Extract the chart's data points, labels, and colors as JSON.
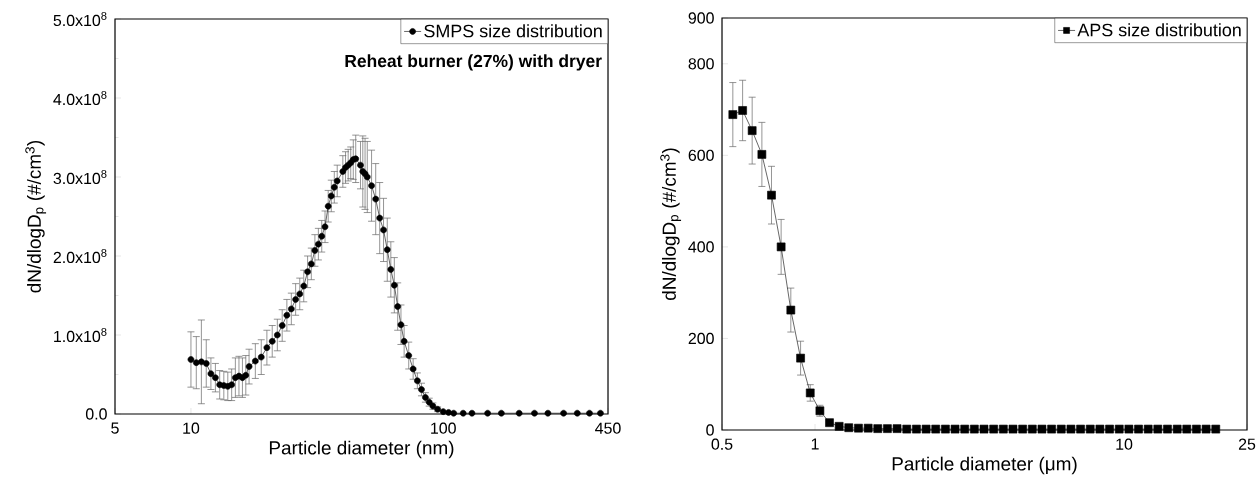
{
  "chart_data": [
    {
      "type": "line",
      "xlabel": "Particle diameter (nm)",
      "ylabel": "dN/dlogD$_{p}$ (#/cm$^{3}$)",
      "log": "x",
      "legend": "top right",
      "marker": "circle",
      "line_style": "solid",
      "annotations": [
        "Reheat burner (27%) with dryer"
      ],
      "xlim": [
        5,
        450
      ],
      "xticks": [
        5,
        10,
        100,
        450
      ],
      "ylim": [
        0,
        500000000.0
      ],
      "yticks": [
        {
          "value": 0,
          "label": "0.0"
        },
        {
          "value": 100000000.0,
          "label": "1.0x10$^{8}$"
        },
        {
          "value": 200000000.0,
          "label": "2.0x10$^{8}$"
        },
        {
          "value": 300000000.0,
          "label": "3.0x10$^{8}$"
        },
        {
          "value": 400000000.0,
          "label": "4.0x10$^{8}$"
        },
        {
          "value": 500000000.0,
          "label": "5.0x10$^{8}$"
        }
      ],
      "series": [
        {
          "name": "SMPS size distribution",
          "color": "#000000",
          "x": [
            10,
            10.5,
            11,
            11.5,
            12,
            12.5,
            13,
            13.5,
            14,
            14.5,
            15,
            15.5,
            16,
            16.5,
            17,
            18,
            19,
            20,
            21,
            22,
            23,
            24,
            25,
            26,
            27,
            28,
            29,
            30,
            31,
            32,
            33,
            34,
            35,
            36,
            37,
            38,
            40,
            41,
            42,
            43,
            44,
            45,
            47,
            48,
            49,
            50,
            52,
            54,
            56,
            58,
            60,
            62,
            64,
            66,
            68,
            70,
            73,
            76,
            79,
            82,
            85,
            88,
            91,
            95,
            100,
            105,
            110,
            120,
            130,
            150,
            170,
            200,
            230,
            260,
            300,
            340,
            380,
            420
          ],
          "values": [
            69000000.0,
            65000000.0,
            66000000.0,
            64000000.0,
            51000000.0,
            46000000.0,
            37000000.0,
            36000000.0,
            35000000.0,
            37000000.0,
            46000000.0,
            48000000.0,
            46000000.0,
            49000000.0,
            60000000.0,
            67000000.0,
            72000000.0,
            84000000.0,
            92000000.0,
            100000000.0,
            112000000.0,
            125000000.0,
            133000000.0,
            145000000.0,
            152000000.0,
            162000000.0,
            180000000.0,
            190000000.0,
            207000000.0,
            215000000.0,
            225000000.0,
            237000000.0,
            263000000.0,
            276000000.0,
            287000000.0,
            295000000.0,
            307000000.0,
            312000000.0,
            315000000.0,
            318000000.0,
            322000000.0,
            323000000.0,
            315000000.0,
            307000000.0,
            304000000.0,
            300000000.0,
            289000000.0,
            272000000.0,
            248000000.0,
            233000000.0,
            208000000.0,
            183000000.0,
            163000000.0,
            136000000.0,
            113000000.0,
            92000000.0,
            74000000.0,
            57000000.0,
            42000000.0,
            31000000.0,
            21000000.0,
            15000000.0,
            10000000.0,
            6000000.0,
            3000000.0,
            2000000.0,
            1000000.0,
            1000000.0,
            1000000.0,
            1000000.0,
            1000000.0,
            1000000.0,
            1000000.0,
            1000000.0,
            1000000.0,
            1000000.0,
            1000000.0,
            1000000.0
          ],
          "errors": [
            35000000.0,
            33000000.0,
            53000000.0,
            30000000.0,
            20000000.0,
            18000000.0,
            18000000.0,
            18000000.0,
            18000000.0,
            20000000.0,
            25000000.0,
            25000000.0,
            25000000.0,
            25000000.0,
            22000000.0,
            22000000.0,
            22000000.0,
            22000000.0,
            20000000.0,
            20000000.0,
            20000000.0,
            20000000.0,
            20000000.0,
            20000000.0,
            20000000.0,
            20000000.0,
            20000000.0,
            20000000.0,
            20000000.0,
            20000000.0,
            20000000.0,
            20000000.0,
            20000000.0,
            20000000.0,
            20000000.0,
            20000000.0,
            20000000.0,
            20000000.0,
            20000000.0,
            20000000.0,
            25000000.0,
            30000000.0,
            30000000.0,
            45000000.0,
            45000000.0,
            45000000.0,
            45000000.0,
            45000000.0,
            45000000.0,
            40000000.0,
            40000000.0,
            35000000.0,
            35000000.0,
            30000000.0,
            25000000.0,
            20000000.0,
            17000000.0,
            13000000.0,
            10000000.0,
            8000000.0,
            6000000.0,
            5000000.0,
            4000000.0,
            3000000.0,
            null,
            null,
            null,
            null,
            null,
            null,
            null,
            null,
            null,
            null,
            null,
            null,
            null,
            null
          ]
        }
      ]
    },
    {
      "type": "line",
      "xlabel": "Particle diameter (μm)",
      "ylabel": "dN/dlogD$_{p}$ (#/cm$^{3}$)",
      "log": "x",
      "legend": "top right",
      "marker": "square",
      "line_style": "solid",
      "xlim": [
        0.5,
        25
      ],
      "xticks": [
        0.5,
        1,
        10,
        25
      ],
      "ylim": [
        0,
        900
      ],
      "yticks": [
        0,
        200,
        400,
        600,
        800,
        900
      ],
      "series": [
        {
          "name": "APS size distribution",
          "color": "#000000",
          "x": [
            0.542,
            0.583,
            0.626,
            0.673,
            0.723,
            0.777,
            0.835,
            0.898,
            0.965,
            1.037,
            1.114,
            1.197,
            1.286,
            1.382,
            1.486,
            1.596,
            1.715,
            1.843,
            1.981,
            2.129,
            2.288,
            2.458,
            2.642,
            2.839,
            3.051,
            3.278,
            3.523,
            3.786,
            4.068,
            4.371,
            4.698,
            5.048,
            5.425,
            5.829,
            6.264,
            6.732,
            7.234,
            7.774,
            8.354,
            8.977,
            9.647,
            10.37,
            11.14,
            11.97,
            12.86,
            13.82,
            14.86,
            15.96,
            17.15,
            18.43,
            19.81
          ],
          "values": [
            689,
            698,
            654,
            602,
            513,
            400,
            262,
            157,
            81,
            42,
            16,
            8,
            5,
            4,
            4,
            3,
            3,
            3,
            2,
            2,
            2,
            2,
            2,
            2,
            2,
            2,
            2,
            2,
            2,
            2,
            2,
            2,
            2,
            2,
            2,
            2,
            2,
            2,
            2,
            2,
            2,
            2,
            2,
            2,
            2,
            2,
            2,
            2,
            2,
            2,
            2
          ],
          "errors": [
            70,
            66,
            73,
            70,
            63,
            60,
            48,
            37,
            18,
            12,
            null,
            null,
            null,
            null,
            null,
            null,
            null,
            null,
            null,
            null,
            null,
            null,
            null,
            null,
            null,
            null,
            null,
            null,
            null,
            null,
            null,
            null,
            null,
            null,
            null,
            null,
            null,
            null,
            null,
            null,
            null,
            null,
            null,
            null,
            null,
            null,
            null,
            null,
            null,
            null,
            null
          ]
        }
      ]
    }
  ]
}
